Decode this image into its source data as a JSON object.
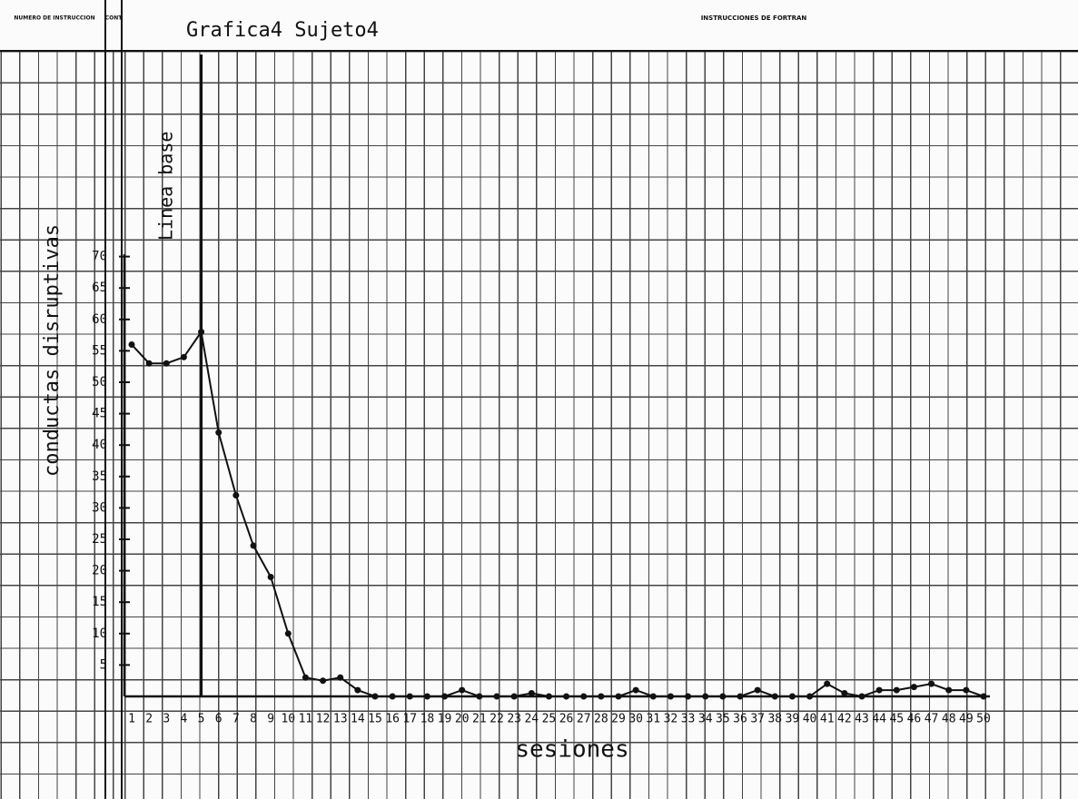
{
  "header": {
    "left": "NUMERO DE INSTRUCCION",
    "cont": "CONT",
    "right": "INSTRUCCIONES DE FORTRAN"
  },
  "chart_data": {
    "type": "line",
    "title": "Grafica4 Sujeto4",
    "ylabel": "conductas disruptivas",
    "xlabel": "sesiones",
    "annotation": "Linea base",
    "x": [
      1,
      2,
      3,
      4,
      5,
      6,
      7,
      8,
      9,
      10,
      11,
      12,
      13,
      14,
      15,
      16,
      17,
      18,
      19,
      20,
      21,
      22,
      23,
      24,
      25,
      26,
      27,
      28,
      29,
      30,
      31,
      32,
      33,
      34,
      35,
      36,
      37,
      38,
      39,
      40,
      41,
      42,
      43,
      44,
      45,
      46,
      47,
      48,
      49,
      50
    ],
    "series": [
      {
        "name": "conductas disruptivas",
        "color": "#111111",
        "values": [
          56,
          53,
          53,
          54,
          58,
          42,
          32,
          24,
          19,
          10,
          3,
          2.5,
          3,
          1,
          0,
          0,
          0,
          0,
          0,
          1,
          0,
          0,
          0,
          0.5,
          0,
          0,
          0,
          0,
          0,
          1,
          0,
          0,
          0,
          0,
          0,
          0,
          1,
          0,
          0,
          0,
          2,
          0.5,
          0,
          1,
          1,
          1.5,
          2,
          1,
          1,
          0
        ]
      }
    ],
    "xlim": [
      1,
      50
    ],
    "ylim": [
      0,
      75
    ],
    "yticks": [
      5,
      10,
      15,
      20,
      25,
      30,
      35,
      40,
      45,
      50,
      55,
      60,
      65,
      70
    ],
    "phase_change": 5
  }
}
